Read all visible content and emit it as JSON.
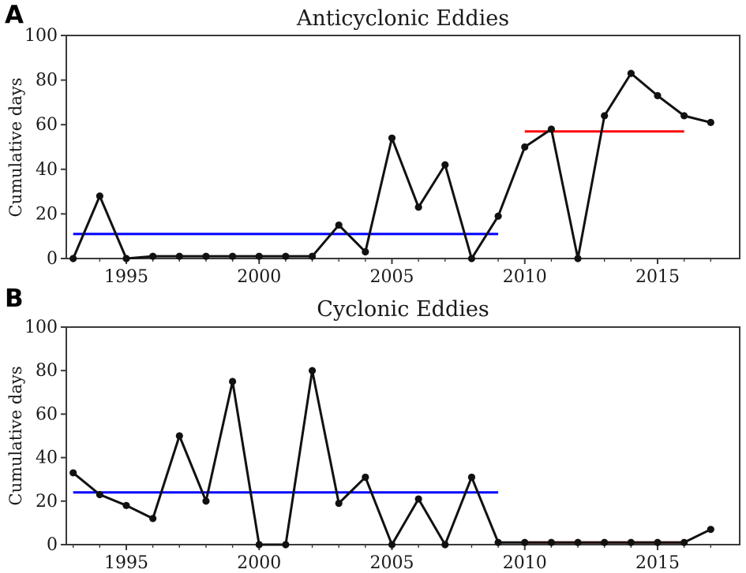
{
  "figure": {
    "background": "#ffffff",
    "text_color": "#1a1a1a",
    "spine_color": "#3a3a3a",
    "data_line_color": "#111111"
  },
  "chart_data": [
    {
      "type": "line",
      "panel_label": "A",
      "title": "Anticyclonic Eddies",
      "xlabel": "",
      "ylabel": "Cumulative days",
      "marker": "circle",
      "line_color": "#111111",
      "ylim": [
        0,
        100
      ],
      "x_range": [
        1992.7,
        2018.1
      ],
      "yticks": [
        0,
        20,
        40,
        60,
        80,
        100
      ],
      "xticks": [
        1995,
        2000,
        2005,
        2010,
        2015
      ],
      "minor_xticks_every_year": true,
      "years": [
        1993,
        1994,
        1995,
        1996,
        1997,
        1998,
        1999,
        2000,
        2001,
        2002,
        2003,
        2004,
        2005,
        2006,
        2007,
        2008,
        2009,
        2010,
        2011,
        2012,
        2013,
        2014,
        2015,
        2016,
        2017
      ],
      "values": [
        0,
        28,
        0,
        1,
        1,
        1,
        1,
        1,
        1,
        1,
        15,
        3,
        54,
        23,
        42,
        0,
        19,
        50,
        58,
        0,
        64,
        83,
        73,
        64,
        61
      ],
      "reference_lines": [
        {
          "name": "blue-mean-line",
          "color": "#0000ff",
          "value": 11,
          "x_start": 1993,
          "x_end": 2009
        },
        {
          "name": "red-mean-line",
          "color": "#ff0000",
          "value": 57,
          "x_start": 2010,
          "x_end": 2016
        }
      ]
    },
    {
      "type": "line",
      "panel_label": "B",
      "title": "Cyclonic Eddies",
      "xlabel": "",
      "ylabel": "Cumulative days",
      "marker": "circle",
      "line_color": "#111111",
      "ylim": [
        0,
        100
      ],
      "x_range": [
        1992.7,
        2018.1
      ],
      "yticks": [
        0,
        20,
        40,
        60,
        80,
        100
      ],
      "xticks": [
        1995,
        2000,
        2005,
        2010,
        2015
      ],
      "minor_xticks_every_year": true,
      "years": [
        1993,
        1994,
        1995,
        1996,
        1997,
        1998,
        1999,
        2000,
        2001,
        2002,
        2003,
        2004,
        2005,
        2006,
        2007,
        2008,
        2009,
        2010,
        2011,
        2012,
        2013,
        2014,
        2015,
        2016,
        2017
      ],
      "values": [
        33,
        23,
        18,
        12,
        50,
        20,
        75,
        0,
        0,
        80,
        19,
        31,
        0,
        21,
        0,
        31,
        1,
        1,
        1,
        1,
        1,
        1,
        1,
        1,
        7
      ],
      "reference_lines": [
        {
          "name": "blue-mean-line",
          "color": "#0000ff",
          "value": 24,
          "x_start": 1993,
          "x_end": 2009
        },
        {
          "name": "red-mean-line",
          "color": "#ff0000",
          "value": 1,
          "x_start": 2010,
          "x_end": 2016
        }
      ]
    }
  ]
}
